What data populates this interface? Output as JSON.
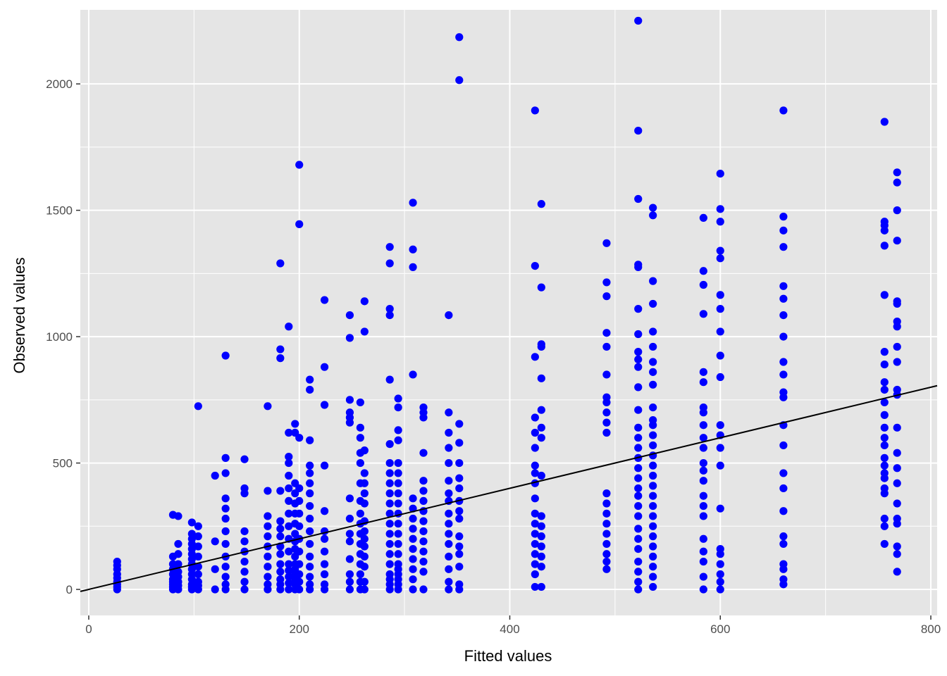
{
  "chart_data": {
    "type": "scatter",
    "title": "",
    "xlabel": "Fitted values",
    "ylabel": "Observed values",
    "xlim": [
      -8,
      806
    ],
    "ylim": [
      -103,
      2293
    ],
    "x_ticks": [
      0,
      200,
      400,
      600,
      800
    ],
    "y_ticks": [
      0,
      500,
      1000,
      1500,
      2000
    ],
    "grid": true,
    "panel_background": "#e5e5e5",
    "grid_color": "#ffffff",
    "point_color": "#0000ff",
    "reference_line": {
      "slope": 1,
      "intercept": 0,
      "color": "#000000"
    },
    "columns": [
      {
        "x": 27,
        "y": [
          0,
          10,
          20,
          30,
          45,
          60,
          80,
          95,
          110
        ]
      },
      {
        "x": 80,
        "y": [
          0,
          10,
          20,
          30,
          40,
          60,
          80,
          100,
          130,
          295
        ]
      },
      {
        "x": 85,
        "y": [
          0,
          15,
          30,
          50,
          70,
          100,
          140,
          180,
          290
        ]
      },
      {
        "x": 98,
        "y": [
          0,
          10,
          20,
          40,
          60,
          80,
          100,
          120,
          140,
          160,
          180,
          200,
          220,
          265
        ]
      },
      {
        "x": 104,
        "y": [
          0,
          15,
          30,
          60,
          90,
          130,
          170,
          210,
          250,
          725
        ]
      },
      {
        "x": 120,
        "y": [
          0,
          80,
          190,
          450
        ]
      },
      {
        "x": 130,
        "y": [
          0,
          20,
          50,
          90,
          130,
          180,
          230,
          280,
          320,
          360,
          460,
          520,
          925
        ]
      },
      {
        "x": 148,
        "y": [
          0,
          30,
          70,
          110,
          150,
          190,
          230,
          380,
          400,
          515
        ]
      },
      {
        "x": 170,
        "y": [
          0,
          20,
          50,
          90,
          130,
          170,
          210,
          250,
          290,
          390,
          725
        ]
      },
      {
        "x": 182,
        "y": [
          0,
          20,
          40,
          70,
          100,
          140,
          170,
          210,
          240,
          270,
          390,
          915,
          950,
          1290
        ]
      },
      {
        "x": 190,
        "y": [
          0,
          25,
          50,
          75,
          100,
          150,
          200,
          250,
          300,
          350,
          400,
          450,
          500,
          525,
          620,
          1040
        ]
      },
      {
        "x": 196,
        "y": [
          0,
          20,
          40,
          60,
          80,
          100,
          130,
          160,
          190,
          220,
          260,
          300,
          340,
          380,
          420,
          620,
          655
        ]
      },
      {
        "x": 200,
        "y": [
          0,
          30,
          60,
          100,
          150,
          200,
          250,
          300,
          350,
          400,
          600,
          1445,
          1680
        ]
      },
      {
        "x": 210,
        "y": [
          0,
          20,
          50,
          90,
          130,
          180,
          230,
          280,
          330,
          380,
          420,
          460,
          490,
          590,
          790,
          830
        ]
      },
      {
        "x": 224,
        "y": [
          0,
          20,
          60,
          100,
          150,
          200,
          230,
          310,
          490,
          730,
          880,
          1145
        ]
      },
      {
        "x": 248,
        "y": [
          0,
          30,
          60,
          120,
          190,
          220,
          280,
          360,
          660,
          680,
          700,
          750,
          995,
          1085
        ]
      },
      {
        "x": 258,
        "y": [
          0,
          30,
          60,
          100,
          140,
          180,
          220,
          260,
          300,
          350,
          420,
          500,
          540,
          600,
          640,
          740
        ]
      },
      {
        "x": 262,
        "y": [
          0,
          30,
          90,
          130,
          170,
          200,
          230,
          270,
          340,
          380,
          420,
          460,
          550,
          1020,
          1140
        ]
      },
      {
        "x": 286,
        "y": [
          0,
          20,
          40,
          60,
          100,
          140,
          180,
          220,
          260,
          300,
          340,
          380,
          420,
          460,
          500,
          575,
          830,
          1085,
          1110,
          1290,
          1355
        ]
      },
      {
        "x": 294,
        "y": [
          0,
          20,
          40,
          60,
          80,
          100,
          140,
          180,
          220,
          260,
          300,
          340,
          380,
          420,
          460,
          500,
          590,
          630,
          720,
          755
        ]
      },
      {
        "x": 308,
        "y": [
          0,
          40,
          80,
          120,
          160,
          200,
          240,
          280,
          320,
          360,
          850,
          1275,
          1345,
          1530
        ]
      },
      {
        "x": 318,
        "y": [
          0,
          70,
          110,
          150,
          190,
          230,
          270,
          310,
          350,
          390,
          430,
          540,
          680,
          700,
          720
        ]
      },
      {
        "x": 342,
        "y": [
          0,
          30,
          80,
          130,
          180,
          220,
          260,
          300,
          350,
          380,
          430,
          500,
          560,
          620,
          700,
          1085
        ]
      },
      {
        "x": 352,
        "y": [
          0,
          20,
          90,
          140,
          170,
          210,
          280,
          310,
          350,
          400,
          440,
          500,
          580,
          655,
          2015,
          2185
        ]
      },
      {
        "x": 424,
        "y": [
          10,
          60,
          100,
          140,
          180,
          220,
          260,
          300,
          360,
          420,
          460,
          490,
          560,
          620,
          680,
          920,
          1280,
          1895
        ]
      },
      {
        "x": 430,
        "y": [
          10,
          90,
          130,
          170,
          210,
          250,
          290,
          450,
          600,
          640,
          710,
          835,
          960,
          970,
          1195,
          1525
        ]
      },
      {
        "x": 492,
        "y": [
          80,
          110,
          140,
          180,
          220,
          260,
          300,
          340,
          380,
          620,
          660,
          700,
          740,
          760,
          850,
          960,
          1015,
          1160,
          1215,
          1370
        ]
      },
      {
        "x": 522,
        "y": [
          0,
          30,
          70,
          110,
          160,
          200,
          240,
          290,
          330,
          370,
          400,
          440,
          480,
          520,
          560,
          600,
          640,
          710,
          800,
          880,
          910,
          940,
          1010,
          1110,
          1275,
          1285,
          1545,
          1815,
          2250
        ]
      },
      {
        "x": 536,
        "y": [
          10,
          50,
          90,
          130,
          170,
          210,
          250,
          290,
          330,
          370,
          410,
          450,
          490,
          530,
          570,
          610,
          650,
          670,
          720,
          810,
          860,
          900,
          960,
          1020,
          1130,
          1220,
          1480,
          1510
        ]
      },
      {
        "x": 584,
        "y": [
          0,
          50,
          110,
          150,
          200,
          290,
          330,
          370,
          430,
          470,
          500,
          560,
          600,
          650,
          700,
          720,
          820,
          860,
          1090,
          1205,
          1260,
          1470
        ]
      },
      {
        "x": 600,
        "y": [
          0,
          30,
          60,
          100,
          140,
          160,
          320,
          490,
          560,
          610,
          650,
          840,
          925,
          1020,
          1110,
          1165,
          1310,
          1340,
          1455,
          1505,
          1645
        ]
      },
      {
        "x": 660,
        "y": [
          20,
          40,
          80,
          100,
          180,
          210,
          310,
          400,
          460,
          570,
          650,
          760,
          780,
          850,
          900,
          1000,
          1085,
          1150,
          1200,
          1355,
          1420,
          1475,
          1895
        ]
      },
      {
        "x": 756,
        "y": [
          180,
          250,
          280,
          380,
          400,
          440,
          460,
          490,
          520,
          570,
          600,
          640,
          690,
          740,
          790,
          820,
          890,
          940,
          1165,
          1360,
          1420,
          1440,
          1455,
          1850
        ]
      },
      {
        "x": 768,
        "y": [
          70,
          140,
          170,
          260,
          280,
          340,
          420,
          480,
          540,
          640,
          770,
          790,
          900,
          960,
          1040,
          1060,
          1130,
          1140,
          1380,
          1500,
          1610,
          1650
        ]
      }
    ]
  }
}
